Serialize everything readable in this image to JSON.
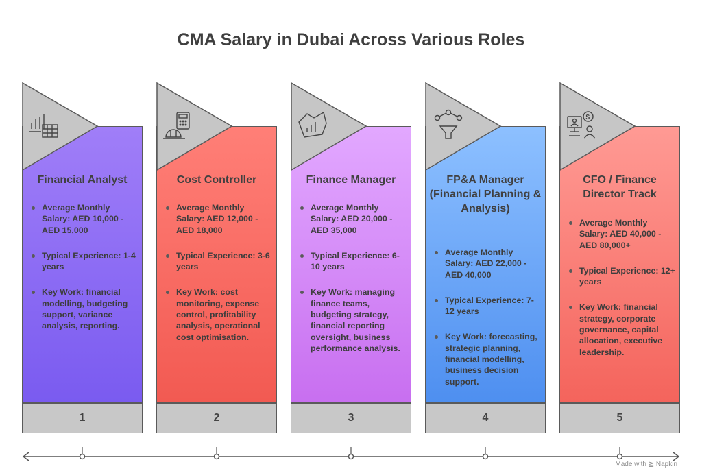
{
  "title": "CMA Salary in Dubai Across Various Roles",
  "roles": [
    {
      "number": "1",
      "name": "Financial Analyst",
      "icon": "bar-chart-table-icon",
      "color_top": "#a07ef8",
      "color_bottom": "#7a5bf0",
      "bullets": [
        "Average Monthly Salary: AED 10,000 - AED 15,000",
        "Typical Experience: 1-4 years",
        "Key Work: financial modelling, budgeting support, variance analysis, reporting."
      ]
    },
    {
      "number": "2",
      "name": "Cost Controller",
      "icon": "calculator-coins-icon",
      "color_top": "#ff7f77",
      "color_bottom": "#f25a52",
      "bullets": [
        "Average Monthly Salary: AED 12,000 - AED 18,000",
        "Typical Experience: 3-6 years",
        "Key Work: cost monitoring, expense control, profitability analysis, operational cost optimisation."
      ]
    },
    {
      "number": "3",
      "name": "Finance Manager",
      "icon": "chart-map-icon",
      "color_top": "#e2a8ff",
      "color_bottom": "#c86ff0",
      "bullets": [
        "Average Monthly Salary: AED 20,000 - AED 35,000",
        "Typical Experience: 6-10 years",
        "Key Work: managing finance teams, budgeting strategy, financial reporting oversight, business performance analysis."
      ]
    },
    {
      "number": "4",
      "name": "FP&A Manager (Financial Planning & Analysis)",
      "icon": "funnel-network-icon",
      "color_top": "#8dc0ff",
      "color_bottom": "#4e8ff0",
      "bullets": [
        "Average Monthly Salary: AED 22,000 - AED 40,000",
        "Typical Experience: 7-12 years",
        "Key Work: forecasting, strategic planning, financial modelling, business decision support."
      ]
    },
    {
      "number": "5",
      "name": "CFO / Finance Director Track",
      "icon": "executive-finance-icon",
      "color_top": "#ff9a94",
      "color_bottom": "#f4645c",
      "bullets": [
        "Average Monthly Salary: AED 40,000 - AED 80,000+",
        "Typical Experience: 12+ years",
        "Key Work: financial strategy, corporate governance, capital allocation, executive leadership."
      ]
    }
  ],
  "credit": "Made with ≧ Napkin"
}
